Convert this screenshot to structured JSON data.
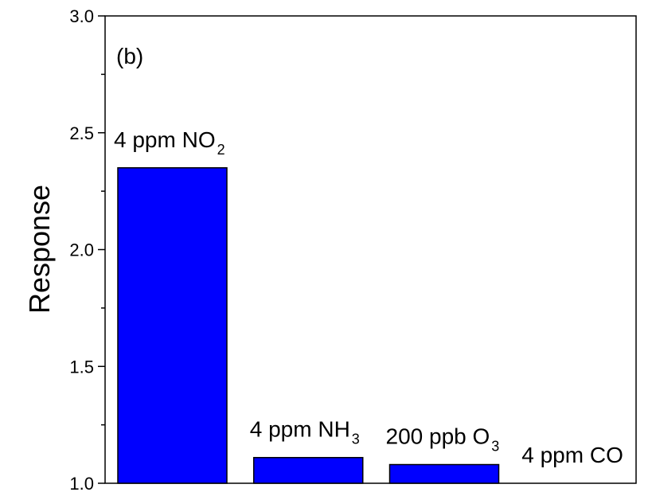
{
  "chart_data": {
    "type": "bar",
    "panel_label": "(b)",
    "ylabel": "Response",
    "xlabel": "",
    "ylim": [
      1.0,
      3.0
    ],
    "yticks": [
      "1.0",
      "1.5",
      "2.0",
      "2.5",
      "3.0"
    ],
    "bar_color": "#0000ff",
    "categories": [
      {
        "base": "4 ppm NO",
        "sub": "2"
      },
      {
        "base": "4 ppm NH",
        "sub": "3"
      },
      {
        "base": "200 ppb O",
        "sub": "3"
      },
      {
        "base": "4 ppm CO",
        "sub": ""
      }
    ],
    "values": [
      2.35,
      1.11,
      1.08,
      1.0
    ]
  }
}
